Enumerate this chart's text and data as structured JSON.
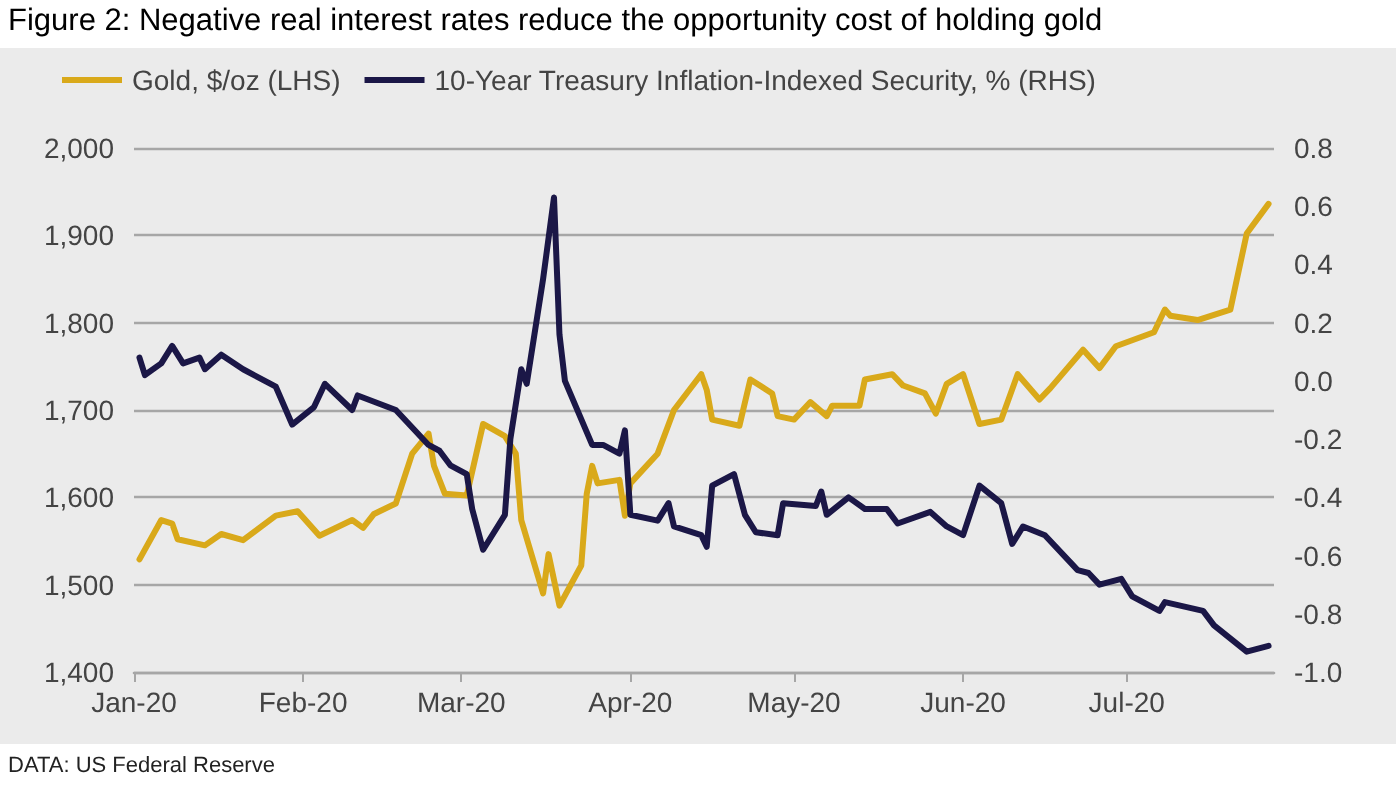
{
  "chart_data": {
    "type": "line",
    "title": "Figure 2: Negative real interest rates reduce the opportunity cost of holding gold",
    "annotations": [
      "DATA: US Federal Reserve"
    ],
    "legend": "top left",
    "grid": "y",
    "marker": "none",
    "line_style": "solid",
    "xlim": [
      "2020-01-01",
      "2020-07-28"
    ],
    "xticks": [
      {
        "value": "2020-01-01",
        "label": "Jan-20"
      },
      {
        "value": "2020-02-01",
        "label": "Feb-20"
      },
      {
        "value": "2020-03-01",
        "label": "Mar-20"
      },
      {
        "value": "2020-04-01",
        "label": "Apr-20"
      },
      {
        "value": "2020-05-01",
        "label": "May-20"
      },
      {
        "value": "2020-06-01",
        "label": "Jun-20"
      },
      {
        "value": "2020-07-01",
        "label": "Jul-20"
      }
    ],
    "ylim": [
      1400,
      2000
    ],
    "yticks": [
      {
        "value": 1400,
        "label": "1,400"
      },
      {
        "value": 1500,
        "label": "1,500"
      },
      {
        "value": 1600,
        "label": "1,600"
      },
      {
        "value": 1700,
        "label": "1,700"
      },
      {
        "value": 1800,
        "label": "1,800"
      },
      {
        "value": 1900,
        "label": "1,900"
      },
      {
        "value": 2000,
        "label": "2,000"
      }
    ],
    "y2lim": [
      -1.0,
      0.8
    ],
    "y2ticks": [
      {
        "value": -1.0,
        "label": "-1.0"
      },
      {
        "value": -0.8,
        "label": "-0.8"
      },
      {
        "value": -0.6,
        "label": "-0.6"
      },
      {
        "value": -0.4,
        "label": "-0.4"
      },
      {
        "value": -0.2,
        "label": "-0.2"
      },
      {
        "value": 0.0,
        "label": "0.0"
      },
      {
        "value": 0.2,
        "label": "0.2"
      },
      {
        "value": 0.4,
        "label": "0.4"
      },
      {
        "value": 0.6,
        "label": "0.6"
      },
      {
        "value": 0.8,
        "label": "0.8"
      }
    ],
    "series": [
      {
        "name": "Gold, $/oz (LHS)",
        "color": "#d9a91a",
        "x": [
          "2020-01-02",
          "2020-01-06",
          "2020-01-08",
          "2020-01-09",
          "2020-01-14",
          "2020-01-17",
          "2020-01-21",
          "2020-01-27",
          "2020-01-31",
          "2020-02-04",
          "2020-02-10",
          "2020-02-12",
          "2020-02-14",
          "2020-02-18",
          "2020-02-21",
          "2020-02-24",
          "2020-02-25",
          "2020-02-27",
          "2020-03-02",
          "2020-03-05",
          "2020-03-09",
          "2020-03-11",
          "2020-03-12",
          "2020-03-16",
          "2020-03-17",
          "2020-03-19",
          "2020-03-23",
          "2020-03-24",
          "2020-03-25",
          "2020-03-26",
          "2020-03-30",
          "2020-03-31",
          "2020-04-01",
          "2020-04-06",
          "2020-04-09",
          "2020-04-14",
          "2020-04-15",
          "2020-04-16",
          "2020-04-21",
          "2020-04-23",
          "2020-04-27",
          "2020-04-28",
          "2020-05-01",
          "2020-05-04",
          "2020-05-07",
          "2020-05-08",
          "2020-05-13",
          "2020-05-14",
          "2020-05-19",
          "2020-05-21",
          "2020-05-25",
          "2020-05-27",
          "2020-05-29",
          "2020-06-01",
          "2020-06-04",
          "2020-06-08",
          "2020-06-11",
          "2020-06-15",
          "2020-06-17",
          "2020-06-23",
          "2020-06-26",
          "2020-06-29",
          "2020-07-06",
          "2020-07-08",
          "2020-07-09",
          "2020-07-14",
          "2020-07-20",
          "2020-07-21",
          "2020-07-23",
          "2020-07-27"
        ],
        "values": [
          1529,
          1574,
          1570,
          1552,
          1545,
          1558,
          1551,
          1579,
          1584,
          1556,
          1574,
          1565,
          1581,
          1593,
          1650,
          1673,
          1636,
          1604,
          1602,
          1684,
          1670,
          1650,
          1574,
          1490,
          1535,
          1476,
          1522,
          1604,
          1636,
          1616,
          1620,
          1579,
          1616,
          1650,
          1700,
          1741,
          1723,
          1689,
          1682,
          1735,
          1719,
          1693,
          1689,
          1709,
          1693,
          1705,
          1705,
          1735,
          1741,
          1728,
          1719,
          1696,
          1730,
          1741,
          1684,
          1689,
          1741,
          1712,
          1725,
          1769,
          1748,
          1773,
          1789,
          1815,
          1808,
          1803,
          1815,
          1844,
          1902,
          1936
        ]
      },
      {
        "name": "10-Year Treasury Inflation-Indexed Security, % (RHS)",
        "color": "#1b1747",
        "axis": "y2",
        "x": [
          "2020-01-02",
          "2020-01-03",
          "2020-01-06",
          "2020-01-08",
          "2020-01-10",
          "2020-01-13",
          "2020-01-14",
          "2020-01-17",
          "2020-01-21",
          "2020-01-27",
          "2020-01-30",
          "2020-02-03",
          "2020-02-05",
          "2020-02-10",
          "2020-02-11",
          "2020-02-18",
          "2020-02-24",
          "2020-02-26",
          "2020-02-28",
          "2020-03-02",
          "2020-03-03",
          "2020-03-05",
          "2020-03-09",
          "2020-03-10",
          "2020-03-12",
          "2020-03-13",
          "2020-03-16",
          "2020-03-18",
          "2020-03-19",
          "2020-03-20",
          "2020-03-25",
          "2020-03-27",
          "2020-03-30",
          "2020-03-31",
          "2020-04-01",
          "2020-04-06",
          "2020-04-08",
          "2020-04-09",
          "2020-04-14",
          "2020-04-15",
          "2020-04-16",
          "2020-04-20",
          "2020-04-22",
          "2020-04-24",
          "2020-04-28",
          "2020-04-29",
          "2020-05-05",
          "2020-05-06",
          "2020-05-07",
          "2020-05-11",
          "2020-05-14",
          "2020-05-18",
          "2020-05-20",
          "2020-05-26",
          "2020-05-29",
          "2020-06-01",
          "2020-06-04",
          "2020-06-08",
          "2020-06-10",
          "2020-06-12",
          "2020-06-16",
          "2020-06-22",
          "2020-06-24",
          "2020-06-26",
          "2020-06-30",
          "2020-07-02",
          "2020-07-07",
          "2020-07-08",
          "2020-07-15",
          "2020-07-17",
          "2020-07-23",
          "2020-07-27"
        ],
        "values": [
          0.08,
          0.02,
          0.06,
          0.12,
          0.06,
          0.08,
          0.04,
          0.09,
          0.04,
          -0.02,
          -0.15,
          -0.09,
          -0.01,
          -0.1,
          -0.05,
          -0.1,
          -0.22,
          -0.24,
          -0.29,
          -0.32,
          -0.44,
          -0.58,
          -0.46,
          -0.2,
          0.04,
          -0.01,
          0.35,
          0.63,
          0.16,
          0.0,
          -0.22,
          -0.22,
          -0.25,
          -0.17,
          -0.46,
          -0.48,
          -0.42,
          -0.5,
          -0.53,
          -0.57,
          -0.36,
          -0.32,
          -0.46,
          -0.52,
          -0.53,
          -0.42,
          -0.43,
          -0.38,
          -0.46,
          -0.4,
          -0.44,
          -0.44,
          -0.49,
          -0.45,
          -0.5,
          -0.53,
          -0.36,
          -0.42,
          -0.56,
          -0.5,
          -0.53,
          -0.65,
          -0.66,
          -0.7,
          -0.68,
          -0.74,
          -0.79,
          -0.76,
          -0.79,
          -0.84,
          -0.93,
          -0.91
        ]
      }
    ]
  }
}
